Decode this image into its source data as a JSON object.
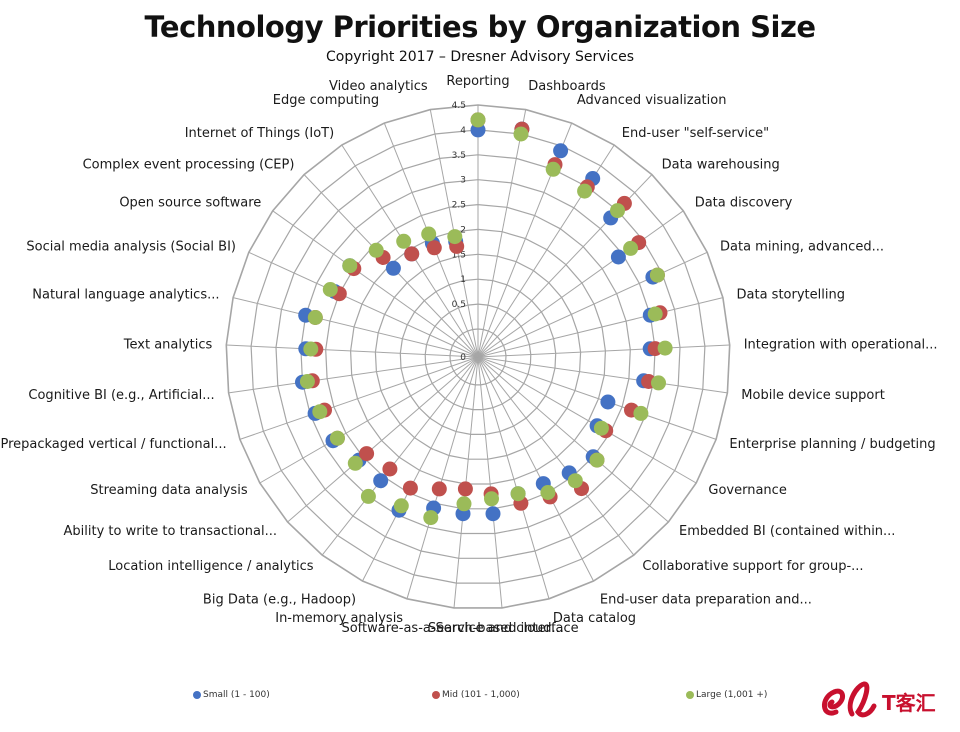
{
  "title": "Technology Priorities by Organization Size",
  "subtitle": "Copyright 2017 – Dresner Advisory Services",
  "watermark": {
    "text": "T客汇",
    "color": "#c8102e"
  },
  "chart_data": {
    "type": "radar",
    "title": "Technology Priorities by Organization Size",
    "subtitle": "Copyright 2017 – Dresner Advisory Services",
    "rlim": [
      0,
      4.5
    ],
    "ticks": [
      "0",
      "0.5",
      "1",
      "1.5",
      "2",
      "2.5",
      "3",
      "3.5",
      "4",
      "4.5"
    ],
    "grid": true,
    "legend_position": "bottom",
    "categories": [
      "Reporting",
      "Dashboards",
      "Advanced visualization",
      "End-user \"self-service\"",
      "Data warehousing",
      "Data discovery",
      "Data mining, advanced...",
      "Data storytelling",
      "Integration with operational...",
      "Mobile device support",
      "Enterprise planning / budgeting",
      "Governance",
      "Embedded BI (contained within...",
      "Collaborative support for group-...",
      "End-user data preparation and...",
      "Data catalog",
      "Search-based interface",
      "Software-as-a-Service and cloud...",
      "In-memory analysis",
      "Big Data (e.g., Hadoop)",
      "Location intelligence / analytics",
      "Ability to write to transactional...",
      "Streaming data analysis",
      "Prepackaged vertical / functional...",
      "Cognitive BI (e.g., Artificial...",
      "Text analytics",
      "Natural language analytics...",
      "Social media analysis (Social BI)",
      "Open source software",
      "Complex event processing (CEP)",
      "Internet of Things (IoT)",
      "Edge computing",
      "Video analytics"
    ],
    "series": [
      {
        "name": "Small (1 - 100)",
        "color": "#4472c4",
        "values": [
          4.0,
          4.1,
          3.9,
          3.7,
          3.3,
          2.9,
          3.3,
          3.0,
          2.9,
          2.8,
          2.2,
          2.2,
          2.5,
          2.4,
          2.3,
          2.3,
          2.6,
          2.6,
          2.6,
          2.9,
          2.6,
          2.6,
          2.8,
          2.9,
          3.0,
          2.9,
          3.0,
          2.6,
          2.6,
          1.9,
          1.9,
          1.9,
          1.8
        ]
      },
      {
        "name": "Mid (101 - 1,000)",
        "color": "#c0504d",
        "values": [
          4.2,
          4.1,
          3.6,
          3.5,
          3.7,
          3.4,
          3.4,
          3.2,
          3.0,
          2.9,
          2.7,
          2.4,
          2.6,
          2.8,
          2.6,
          2.5,
          2.2,
          2.1,
          2.2,
          2.4,
          2.3,
          2.4,
          2.7,
          2.7,
          2.8,
          2.7,
          2.8,
          2.5,
          2.5,
          2.2,
          1.9,
          1.8,
          1.7
        ]
      },
      {
        "name": "Large (1,001 +)",
        "color": "#9bbb59",
        "values": [
          4.2,
          4.0,
          3.5,
          3.4,
          3.5,
          3.2,
          3.4,
          3.1,
          3.2,
          3.1,
          2.9,
          2.3,
          2.6,
          2.6,
          2.5,
          2.3,
          2.3,
          2.4,
          2.8,
          2.8,
          3.0,
          2.7,
          2.7,
          2.8,
          2.9,
          2.8,
          2.8,
          2.7,
          2.6,
          2.4,
          2.2,
          2.1,
          1.9
        ]
      }
    ]
  }
}
